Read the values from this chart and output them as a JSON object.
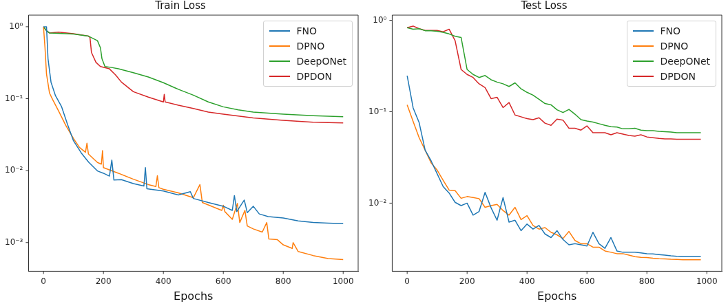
{
  "chart_data": [
    {
      "type": "line",
      "title": "Train Loss",
      "xlabel": "Epochs",
      "log": "y",
      "grid": false,
      "legend": "top right",
      "xlim": [
        -50,
        1050
      ],
      "xticks": [
        0,
        200,
        400,
        600,
        800,
        1000
      ],
      "ylim": [
        0.0004,
        1.45
      ],
      "yticks": [
        {
          "value": 1,
          "label": "10⁰"
        },
        {
          "value": 0.1,
          "label": "10⁻¹"
        },
        {
          "value": 0.01,
          "label": "10⁻²"
        },
        {
          "value": 0.001,
          "label": "10⁻³"
        }
      ],
      "series": [
        {
          "name": "FNO",
          "color": "#1f77b4",
          "x": [
            0,
            10,
            15,
            25,
            40,
            60,
            80,
            100,
            126,
            150,
            180,
            200,
            220,
            228,
            235,
            260,
            300,
            335,
            340,
            345,
            400,
            450,
            490,
            500,
            550,
            600,
            630,
            637,
            645,
            670,
            680,
            700,
            720,
            750,
            800,
            850,
            900,
            950,
            1000
          ],
          "values": [
            1.0,
            1.0,
            0.36,
            0.17,
            0.11,
            0.078,
            0.044,
            0.026,
            0.0176,
            0.0132,
            0.0099,
            0.0092,
            0.0084,
            0.014,
            0.0074,
            0.0075,
            0.0066,
            0.0061,
            0.011,
            0.0056,
            0.0052,
            0.0046,
            0.0051,
            0.0041,
            0.0036,
            0.0032,
            0.0028,
            0.0045,
            0.0027,
            0.0039,
            0.0026,
            0.0032,
            0.0025,
            0.0023,
            0.0022,
            0.002,
            0.0019,
            0.00186,
            0.00183
          ]
        },
        {
          "name": "DPNO",
          "color": "#ff7f0e",
          "x": [
            0,
            5,
            10,
            20,
            30,
            50,
            75,
            100,
            120,
            140,
            145,
            150,
            180,
            193,
            197,
            200,
            250,
            300,
            350,
            375,
            380,
            385,
            400,
            450,
            500,
            522,
            530,
            595,
            600,
            605,
            630,
            647,
            655,
            672,
            680,
            700,
            730,
            745,
            752,
            780,
            800,
            830,
            833,
            850,
            900,
            950,
            1000
          ],
          "values": [
            1.0,
            0.51,
            0.22,
            0.12,
            0.098,
            0.068,
            0.042,
            0.028,
            0.021,
            0.018,
            0.024,
            0.017,
            0.013,
            0.0123,
            0.019,
            0.011,
            0.0092,
            0.0076,
            0.0064,
            0.006,
            0.0085,
            0.0058,
            0.0055,
            0.0049,
            0.0042,
            0.0064,
            0.0036,
            0.0028,
            0.0033,
            0.0027,
            0.0021,
            0.0035,
            0.0019,
            0.0028,
            0.0017,
            0.00155,
            0.0014,
            0.0019,
            0.00112,
            0.0011,
            0.00093,
            0.00083,
            0.001,
            0.00075,
            0.00066,
            0.0006,
            0.00058
          ]
        },
        {
          "name": "DeepONet",
          "color": "#2ca02c",
          "x": [
            0,
            10,
            20,
            50,
            100,
            150,
            180,
            190,
            195,
            205,
            230,
            250,
            300,
            350,
            400,
            450,
            500,
            550,
            600,
            650,
            700,
            800,
            900,
            1000
          ],
          "values": [
            1.0,
            0.88,
            0.82,
            0.81,
            0.79,
            0.74,
            0.64,
            0.51,
            0.36,
            0.28,
            0.27,
            0.26,
            0.23,
            0.2,
            0.167,
            0.135,
            0.112,
            0.09,
            0.077,
            0.07,
            0.065,
            0.061,
            0.058,
            0.056
          ]
        },
        {
          "name": "DPDON",
          "color": "#d62728",
          "x": [
            0,
            10,
            20,
            50,
            100,
            150,
            155,
            160,
            175,
            190,
            220,
            240,
            260,
            300,
            350,
            400,
            403,
            406,
            450,
            500,
            550,
            600,
            700,
            800,
            900,
            1000
          ],
          "values": [
            1.0,
            0.88,
            0.82,
            0.84,
            0.8,
            0.74,
            0.71,
            0.44,
            0.32,
            0.28,
            0.26,
            0.215,
            0.17,
            0.125,
            0.105,
            0.09,
            0.115,
            0.09,
            0.081,
            0.073,
            0.065,
            0.061,
            0.054,
            0.05,
            0.047,
            0.046
          ]
        }
      ]
    },
    {
      "type": "line",
      "title": "Test Loss",
      "xlabel": "Epochs",
      "log": "y",
      "grid": false,
      "legend": "top right",
      "xlim": [
        -50,
        1050
      ],
      "xticks": [
        0,
        200,
        400,
        600,
        800,
        1000
      ],
      "ylim": [
        0.0018,
        1.14
      ],
      "yticks": [
        {
          "value": 1,
          "label": "10⁰"
        },
        {
          "value": 0.1,
          "label": "10⁻¹"
        },
        {
          "value": 0.01,
          "label": "10⁻²"
        }
      ],
      "x": [
        0,
        20,
        40,
        60,
        80,
        100,
        120,
        140,
        160,
        180,
        200,
        220,
        240,
        260,
        280,
        300,
        320,
        340,
        360,
        380,
        400,
        420,
        440,
        460,
        480,
        500,
        520,
        540,
        560,
        580,
        600,
        620,
        640,
        660,
        680,
        700,
        720,
        740,
        760,
        780,
        800,
        820,
        840,
        860,
        880,
        900,
        920,
        940,
        960,
        980
      ],
      "series": [
        {
          "name": "FNO",
          "color": "#1f77b4",
          "values": [
            0.248,
            0.11,
            0.076,
            0.038,
            0.029,
            0.021,
            0.0152,
            0.0129,
            0.0102,
            0.0094,
            0.01,
            0.0074,
            0.0081,
            0.0131,
            0.0089,
            0.0065,
            0.0115,
            0.0062,
            0.0065,
            0.005,
            0.0059,
            0.0052,
            0.0057,
            0.0046,
            0.0042,
            0.005,
            0.004,
            0.0035,
            0.0036,
            0.0035,
            0.0034,
            0.0048,
            0.0036,
            0.0032,
            0.0042,
            0.003,
            0.0029,
            0.0029,
            0.00291,
            0.00286,
            0.0028,
            0.00278,
            0.00274,
            0.0027,
            0.00265,
            0.00262,
            0.0026,
            0.0026,
            0.0026,
            0.0026
          ]
        },
        {
          "name": "DPNO",
          "color": "#ff7f0e",
          "values": [
            0.119,
            0.078,
            0.052,
            0.038,
            0.0275,
            0.023,
            0.0178,
            0.0139,
            0.0137,
            0.0113,
            0.0118,
            0.0115,
            0.0112,
            0.009,
            0.0094,
            0.0097,
            0.0083,
            0.0074,
            0.009,
            0.0066,
            0.0073,
            0.0057,
            0.0052,
            0.0054,
            0.0048,
            0.0045,
            0.0041,
            0.0049,
            0.0039,
            0.0036,
            0.0036,
            0.0033,
            0.0033,
            0.003,
            0.0029,
            0.0028,
            0.0028,
            0.0027,
            0.0026,
            0.00255,
            0.00254,
            0.0025,
            0.00247,
            0.00245,
            0.00243,
            0.00242,
            0.0024,
            0.0024,
            0.0024,
            0.0024
          ]
        },
        {
          "name": "DeepONet",
          "color": "#2ca02c",
          "values": [
            0.83,
            0.8,
            0.81,
            0.77,
            0.77,
            0.76,
            0.74,
            0.71,
            0.67,
            0.65,
            0.29,
            0.256,
            0.237,
            0.249,
            0.224,
            0.211,
            0.202,
            0.189,
            0.207,
            0.178,
            0.163,
            0.152,
            0.137,
            0.123,
            0.119,
            0.105,
            0.098,
            0.106,
            0.094,
            0.082,
            0.079,
            0.077,
            0.074,
            0.071,
            0.0685,
            0.068,
            0.065,
            0.065,
            0.066,
            0.063,
            0.062,
            0.062,
            0.061,
            0.0605,
            0.06,
            0.059,
            0.059,
            0.059,
            0.059,
            0.059
          ]
        },
        {
          "name": "DPDON",
          "color": "#d62728",
          "values": [
            0.83,
            0.865,
            0.81,
            0.775,
            0.775,
            0.775,
            0.75,
            0.8,
            0.6,
            0.29,
            0.256,
            0.237,
            0.202,
            0.184,
            0.139,
            0.144,
            0.111,
            0.126,
            0.092,
            0.088,
            0.084,
            0.082,
            0.086,
            0.075,
            0.071,
            0.083,
            0.081,
            0.066,
            0.066,
            0.063,
            0.07,
            0.059,
            0.059,
            0.059,
            0.056,
            0.059,
            0.057,
            0.055,
            0.054,
            0.056,
            0.053,
            0.052,
            0.051,
            0.0505,
            0.0505,
            0.05,
            0.05,
            0.05,
            0.05,
            0.05
          ]
        }
      ]
    }
  ]
}
